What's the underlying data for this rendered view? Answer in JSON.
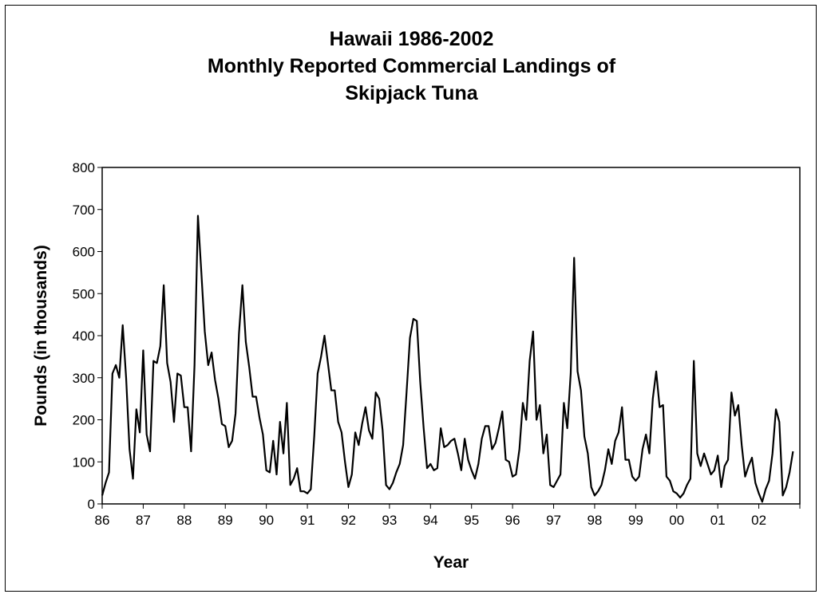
{
  "chart_data": {
    "type": "line",
    "title": [
      "Hawaii 1986-2002",
      "Monthly Reported Commercial Landings of",
      "Skipjack Tuna"
    ],
    "xlabel": "Year",
    "ylabel": "Pounds (in thousands)",
    "ylim": [
      0,
      800
    ],
    "yticks": [
      0,
      100,
      200,
      300,
      400,
      500,
      600,
      700,
      800
    ],
    "xlim": [
      1986,
      2003
    ],
    "xticks": [
      {
        "value": 1986,
        "label": "86"
      },
      {
        "value": 1987,
        "label": "87"
      },
      {
        "value": 1988,
        "label": "88"
      },
      {
        "value": 1989,
        "label": "89"
      },
      {
        "value": 1990,
        "label": "90"
      },
      {
        "value": 1991,
        "label": "91"
      },
      {
        "value": 1992,
        "label": "92"
      },
      {
        "value": 1993,
        "label": "93"
      },
      {
        "value": 1994,
        "label": "94"
      },
      {
        "value": 1995,
        "label": "95"
      },
      {
        "value": 1996,
        "label": "96"
      },
      {
        "value": 1997,
        "label": "97"
      },
      {
        "value": 1998,
        "label": "98"
      },
      {
        "value": 1999,
        "label": "99"
      },
      {
        "value": 2000,
        "label": "00"
      },
      {
        "value": 2001,
        "label": "01"
      },
      {
        "value": 2002,
        "label": "02"
      }
    ],
    "grid": false,
    "series": [
      {
        "color": "#000000",
        "start": "1986-01",
        "frequency": "monthly",
        "values": [
          20,
          50,
          75,
          310,
          330,
          300,
          425,
          300,
          130,
          60,
          225,
          170,
          365,
          165,
          125,
          340,
          335,
          375,
          520,
          335,
          290,
          195,
          310,
          305,
          230,
          230,
          125,
          330,
          685,
          550,
          410,
          330,
          360,
          295,
          250,
          190,
          185,
          135,
          150,
          215,
          405,
          520,
          385,
          325,
          255,
          255,
          205,
          165,
          80,
          75,
          150,
          70,
          195,
          120,
          240,
          45,
          60,
          85,
          30,
          30,
          25,
          35,
          160,
          310,
          350,
          400,
          335,
          270,
          270,
          195,
          170,
          100,
          40,
          70,
          170,
          140,
          190,
          230,
          175,
          155,
          265,
          250,
          175,
          45,
          35,
          50,
          75,
          95,
          140,
          265,
          395,
          440,
          435,
          290,
          180,
          85,
          95,
          80,
          85,
          180,
          135,
          140,
          150,
          155,
          120,
          80,
          155,
          105,
          80,
          60,
          95,
          155,
          185,
          185,
          130,
          145,
          180,
          220,
          105,
          100,
          65,
          70,
          130,
          240,
          200,
          340,
          410,
          200,
          235,
          120,
          165,
          45,
          40,
          55,
          70,
          240,
          180,
          310,
          585,
          315,
          270,
          160,
          120,
          40,
          20,
          30,
          45,
          80,
          130,
          95,
          150,
          170,
          230,
          105,
          105,
          65,
          55,
          65,
          130,
          165,
          120,
          250,
          315,
          230,
          235,
          65,
          55,
          30,
          25,
          15,
          25,
          45,
          60,
          340,
          120,
          90,
          120,
          95,
          70,
          80,
          115,
          40,
          90,
          105,
          265,
          210,
          235,
          140,
          65,
          90,
          110,
          50,
          25,
          5,
          35,
          55,
          120,
          225,
          195,
          20,
          40,
          75,
          125
        ]
      }
    ]
  }
}
